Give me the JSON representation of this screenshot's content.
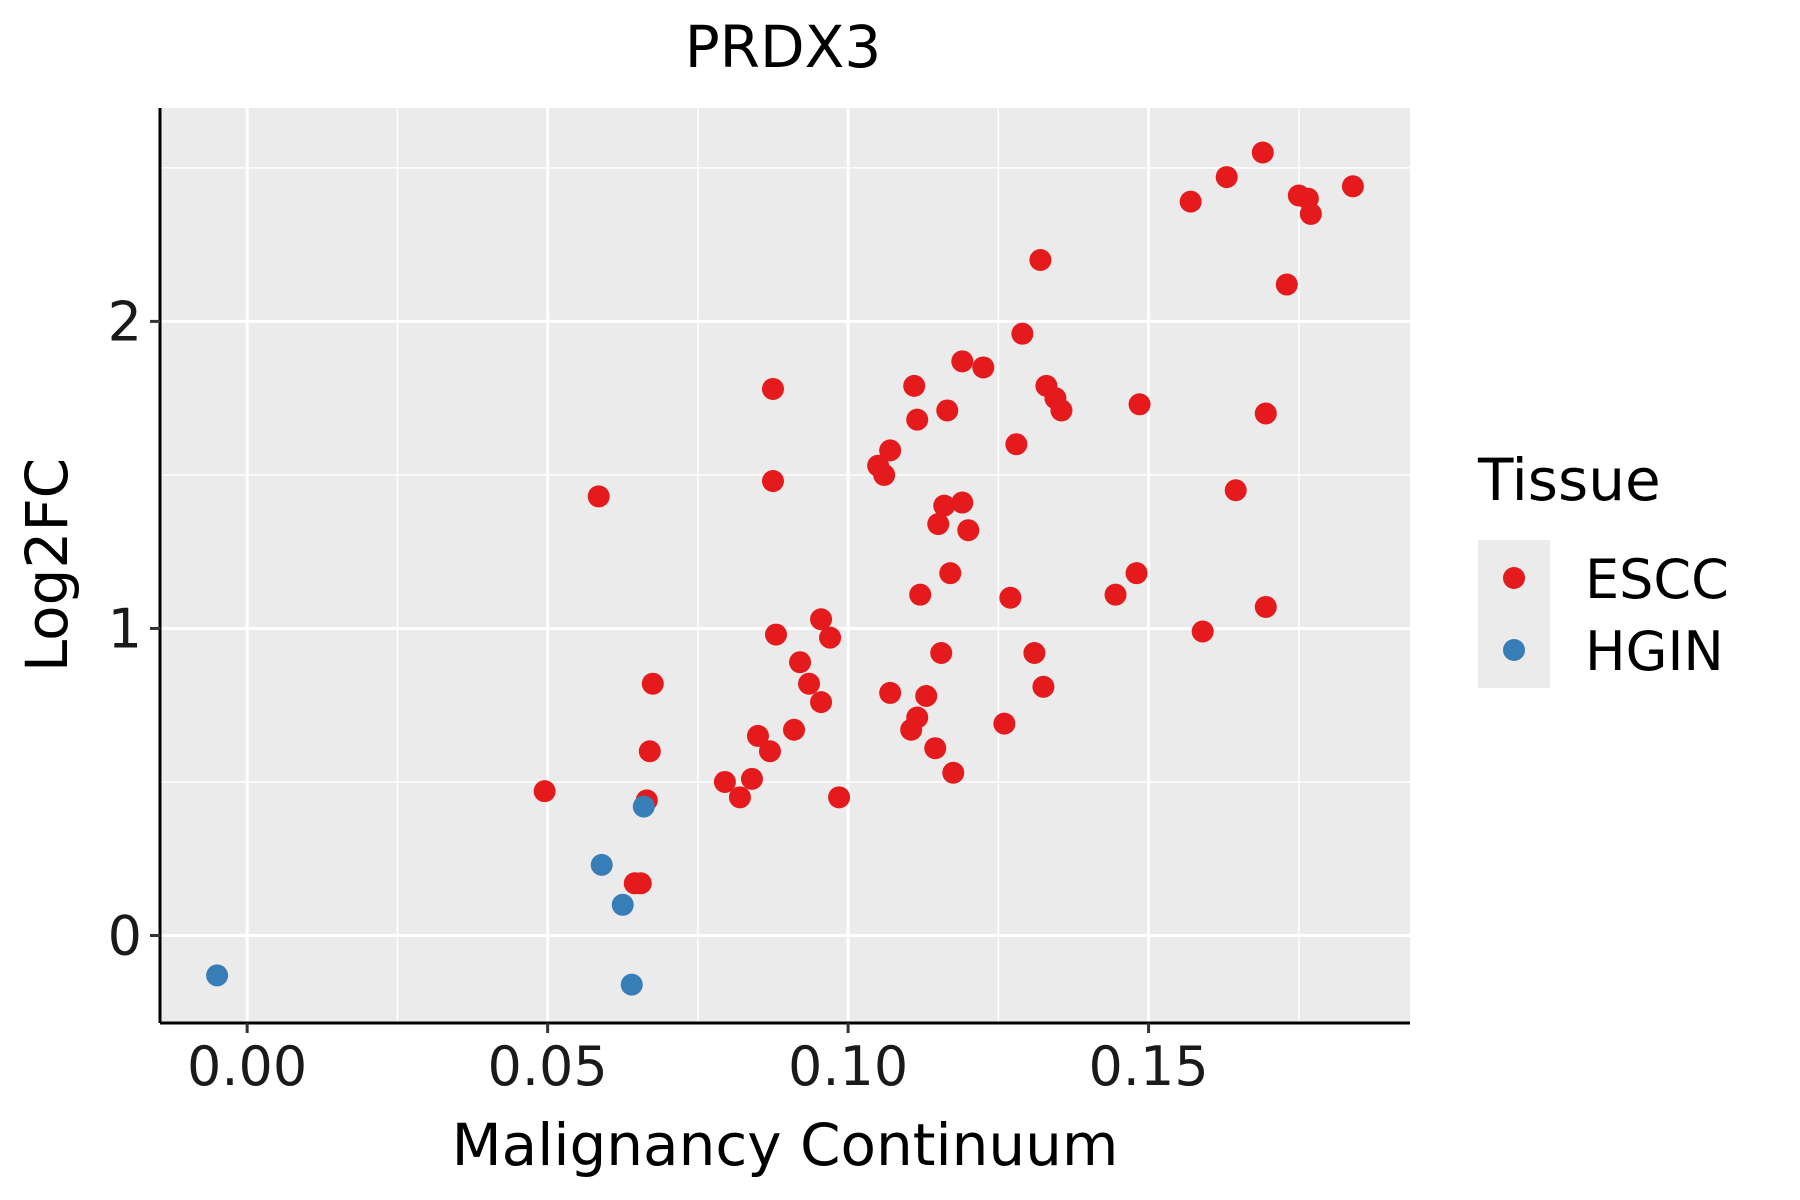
{
  "chart_data": {
    "type": "scatter",
    "title": "PRDX3",
    "xlabel": "Malignancy Continuum",
    "ylabel": "Log2FC",
    "xlim": [
      -0.0145,
      0.1935
    ],
    "ylim": [
      -0.285,
      2.695
    ],
    "x_ticks": [
      0.0,
      0.05,
      0.1,
      0.15
    ],
    "x_tick_labels": [
      "0.00",
      "0.05",
      "0.10",
      "0.15"
    ],
    "y_ticks": [
      0,
      1,
      2
    ],
    "y_tick_labels": [
      "0",
      "1",
      "2"
    ],
    "grid": true,
    "panel_background": "#ebebeb",
    "legend": {
      "title": "Tissue",
      "position": "right",
      "items": [
        "ESCC",
        "HGIN"
      ]
    },
    "series": [
      {
        "name": "ESCC",
        "color": "#e41a1c",
        "points": [
          [
            0.0495,
            0.47
          ],
          [
            0.0585,
            1.43
          ],
          [
            0.0645,
            0.17
          ],
          [
            0.0655,
            0.17
          ],
          [
            0.0665,
            0.44
          ],
          [
            0.067,
            0.6
          ],
          [
            0.0675,
            0.82
          ],
          [
            0.0795,
            0.5
          ],
          [
            0.082,
            0.45
          ],
          [
            0.084,
            0.51
          ],
          [
            0.085,
            0.65
          ],
          [
            0.087,
            0.6
          ],
          [
            0.0875,
            1.78
          ],
          [
            0.0875,
            1.48
          ],
          [
            0.088,
            0.98
          ],
          [
            0.091,
            0.67
          ],
          [
            0.092,
            0.89
          ],
          [
            0.0935,
            0.82
          ],
          [
            0.0955,
            0.76
          ],
          [
            0.0955,
            1.03
          ],
          [
            0.097,
            0.97
          ],
          [
            0.0985,
            0.45
          ],
          [
            0.105,
            1.53
          ],
          [
            0.106,
            1.5
          ],
          [
            0.107,
            0.79
          ],
          [
            0.107,
            1.58
          ],
          [
            0.1105,
            0.67
          ],
          [
            0.111,
            1.79
          ],
          [
            0.1115,
            1.68
          ],
          [
            0.1115,
            0.71
          ],
          [
            0.112,
            1.11
          ],
          [
            0.113,
            0.78
          ],
          [
            0.1145,
            0.61
          ],
          [
            0.115,
            1.34
          ],
          [
            0.1155,
            0.92
          ],
          [
            0.116,
            1.4
          ],
          [
            0.1165,
            1.71
          ],
          [
            0.117,
            1.18
          ],
          [
            0.1175,
            0.53
          ],
          [
            0.119,
            1.87
          ],
          [
            0.119,
            1.41
          ],
          [
            0.12,
            1.32
          ],
          [
            0.1225,
            1.85
          ],
          [
            0.126,
            0.69
          ],
          [
            0.127,
            1.1
          ],
          [
            0.128,
            1.6
          ],
          [
            0.129,
            1.96
          ],
          [
            0.131,
            0.92
          ],
          [
            0.132,
            2.2
          ],
          [
            0.1325,
            0.81
          ],
          [
            0.133,
            1.79
          ],
          [
            0.1345,
            1.75
          ],
          [
            0.1355,
            1.71
          ],
          [
            0.1445,
            1.11
          ],
          [
            0.148,
            1.18
          ],
          [
            0.1485,
            1.73
          ],
          [
            0.157,
            2.39
          ],
          [
            0.159,
            0.99
          ],
          [
            0.163,
            2.47
          ],
          [
            0.1645,
            1.45
          ],
          [
            0.169,
            2.55
          ],
          [
            0.1695,
            1.7
          ],
          [
            0.1695,
            1.07
          ],
          [
            0.173,
            2.12
          ],
          [
            0.175,
            2.41
          ],
          [
            0.1765,
            2.4
          ],
          [
            0.177,
            2.35
          ],
          [
            0.184,
            2.44
          ]
        ]
      },
      {
        "name": "HGIN",
        "color": "#377eb8",
        "points": [
          [
            -0.005,
            -0.13
          ],
          [
            0.059,
            0.23
          ],
          [
            0.0625,
            0.1
          ],
          [
            0.064,
            -0.16
          ],
          [
            0.066,
            0.42
          ]
        ]
      }
    ]
  }
}
